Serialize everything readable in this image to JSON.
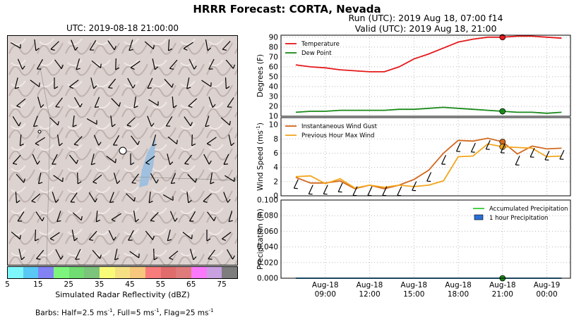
{
  "title": "HRRR Forecast: CORTA, Nevada",
  "map": {
    "title": "UTC: 2019-08-18 21:00:00",
    "colorbar": {
      "label": "Simulated Radar Reflectivity (dBZ)",
      "ticks": [
        "5",
        "15",
        "25",
        "35",
        "45",
        "55",
        "65",
        "75"
      ],
      "colors": [
        "#7ef7fb",
        "#59c8f4",
        "#8282f5",
        "#7df57d",
        "#71dc71",
        "#7cc47c",
        "#fafa79",
        "#f5e184",
        "#f6c77c",
        "#f87c7c",
        "#e06c6c",
        "#e07b7b",
        "#fa79fa",
        "#c9a0e0",
        "#7d7d7d"
      ]
    },
    "barbs_note": {
      "prefix": "Barbs: Half=2.5 ms",
      "unit_exp": "-1",
      "mid": ", Full=5 ms",
      "end": ", Flag=25 ms"
    }
  },
  "run_line": "Run (UTC): 2019 Aug 18, 07:00 f14",
  "valid_line": "Valid (UTC): 2019 Aug 18, 21:00",
  "chart_data": [
    {
      "type": "line",
      "ylabel": "Degrees (F)",
      "ylim": [
        10,
        92
      ],
      "yticks": [
        10,
        20,
        30,
        40,
        50,
        60,
        70,
        80,
        90
      ],
      "legend_position": "top-left",
      "x_hours": [
        7,
        8,
        9,
        10,
        11,
        12,
        13,
        14,
        15,
        16,
        17,
        18,
        19,
        20,
        21,
        22,
        23,
        24,
        25
      ],
      "series": [
        {
          "name": "Temperature",
          "color": "#e41a1c",
          "values": [
            62,
            60,
            59,
            57,
            56,
            55,
            55,
            60,
            68,
            73,
            79,
            85,
            88,
            90,
            90,
            91,
            91,
            90,
            89
          ]
        },
        {
          "name": "Dew Point",
          "color": "#1a8a1a",
          "values": [
            14,
            15,
            15,
            16,
            16,
            16,
            16,
            17,
            17,
            18,
            19,
            18,
            17,
            16,
            15,
            14,
            14,
            13,
            14
          ]
        }
      ],
      "marker": {
        "x": 21,
        "values": [
          90,
          15
        ]
      },
      "grid": true
    },
    {
      "type": "line",
      "ylabel": "Wind Speed (ms",
      "ylabel_exp": "-1",
      "ylim": [
        0,
        11
      ],
      "yticks": [
        0,
        2,
        4,
        6,
        8,
        10
      ],
      "legend_position": "top-left",
      "x_hours": [
        7,
        8,
        9,
        10,
        11,
        12,
        13,
        14,
        15,
        16,
        17,
        18,
        19,
        20,
        21,
        22,
        23,
        24,
        25
      ],
      "series": [
        {
          "name": "Instantaneous Wind Gust",
          "color": "#d2691e",
          "values": [
            2.6,
            1.8,
            1.8,
            2.1,
            1.0,
            1.5,
            1.0,
            1.5,
            2.3,
            3.6,
            6.0,
            7.8,
            7.7,
            8.1,
            7.6,
            5.9,
            7.0,
            6.6,
            6.7
          ]
        },
        {
          "name": "Previous Hour Max Wind",
          "color": "#f2a61d",
          "values": [
            2.7,
            2.8,
            1.7,
            2.4,
            1.1,
            1.5,
            1.2,
            1.5,
            1.3,
            1.5,
            2.1,
            5.5,
            5.6,
            7.3,
            6.9,
            6.8,
            6.7,
            5.5,
            5.6
          ]
        }
      ],
      "marker": {
        "x": 21,
        "values": [
          7.6,
          6.9
        ]
      },
      "grid": true
    },
    {
      "type": "line",
      "ylabel": "Precipitation (in)",
      "ylim": [
        0,
        0.1
      ],
      "yticks": [
        "0.000",
        "0.020",
        "0.040",
        "0.060",
        "0.080",
        "0.100"
      ],
      "legend_position": "top-right",
      "series": [
        {
          "name": "Accumulated Precipitation",
          "color": "#33cc33",
          "values": [
            0,
            0,
            0,
            0,
            0,
            0,
            0,
            0,
            0,
            0,
            0,
            0,
            0,
            0,
            0,
            0,
            0,
            0,
            0
          ]
        },
        {
          "name": "1 hour Precipitation",
          "color": "#2b6fd6",
          "values": [
            0,
            0,
            0,
            0,
            0,
            0,
            0,
            0,
            0,
            0,
            0,
            0,
            0,
            0,
            0,
            0,
            0,
            0,
            0
          ]
        }
      ],
      "marker": {
        "x": 21,
        "values": [
          0
        ]
      },
      "xticks": [
        {
          "hour": 9,
          "label1": "Aug-18",
          "label2": "09:00"
        },
        {
          "hour": 12,
          "label1": "Aug-18",
          "label2": "12:00"
        },
        {
          "hour": 15,
          "label1": "Aug-18",
          "label2": "15:00"
        },
        {
          "hour": 18,
          "label1": "Aug-18",
          "label2": "18:00"
        },
        {
          "hour": 21,
          "label1": "Aug-18",
          "label2": "21:00"
        },
        {
          "hour": 24,
          "label1": "Aug-19",
          "label2": "00:00"
        }
      ],
      "grid": true
    }
  ]
}
